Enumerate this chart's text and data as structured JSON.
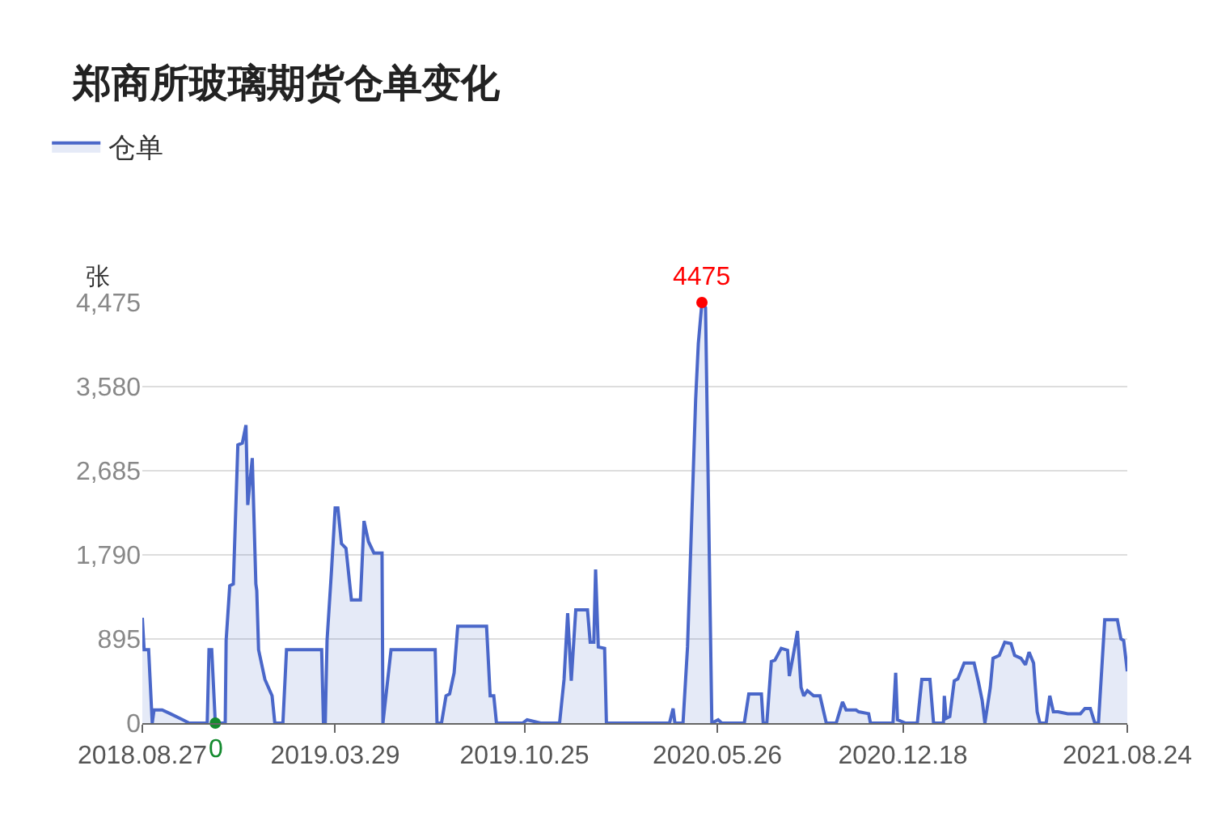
{
  "chart_data": {
    "type": "area",
    "title": "郑商所玻璃期货仓单变化",
    "ylabel": "张",
    "legend": "top left",
    "grid": "y",
    "x": [
      "2018-08-27",
      "2018-08-29",
      "2018-09-03",
      "2018-09-07",
      "2018-09-09",
      "2018-09-18",
      "2018-09-27",
      "2018-10-11",
      "2018-10-18",
      "2018-11-07",
      "2018-11-09",
      "2018-11-12",
      "2018-11-16",
      "2018-11-27",
      "2018-11-28",
      "2018-12-02",
      "2018-12-06",
      "2018-12-11",
      "2018-12-16",
      "2018-12-20",
      "2018-12-22",
      "2018-12-27",
      "2018-12-31",
      "2019-01-01",
      "2019-01-03",
      "2019-01-10",
      "2019-01-18",
      "2019-01-21",
      "2019-01-30",
      "2019-02-03",
      "2019-03-14",
      "2019-03-16",
      "2019-03-18",
      "2019-03-20",
      "2019-03-25",
      "2019-03-29",
      "2019-04-01",
      "2019-04-05",
      "2019-04-10",
      "2019-04-16",
      "2019-04-26",
      "2019-04-30",
      "2019-05-05",
      "2019-05-11",
      "2019-05-20",
      "2019-05-21",
      "2019-05-30",
      "2019-07-18",
      "2019-07-20",
      "2019-07-25",
      "2019-07-30",
      "2019-08-03",
      "2019-08-08",
      "2019-08-12",
      "2019-09-13",
      "2019-09-17",
      "2019-09-21",
      "2019-09-24",
      "2019-10-23",
      "2019-10-28",
      "2019-11-12",
      "2019-12-03",
      "2019-12-08",
      "2019-12-12",
      "2019-12-16",
      "2019-12-21",
      "2020-01-03",
      "2020-01-06",
      "2020-01-10",
      "2020-01-12",
      "2020-01-15",
      "2020-01-22",
      "2020-01-24",
      "2020-04-03",
      "2020-04-07",
      "2020-04-09",
      "2020-04-18",
      "2020-04-23",
      "2020-05-02",
      "2020-05-05",
      "2020-05-09",
      "2020-05-13",
      "2020-05-16",
      "2020-05-20",
      "2020-05-27",
      "2020-05-31",
      "2020-06-25",
      "2020-06-30",
      "2020-07-14",
      "2020-07-16",
      "2020-07-20",
      "2020-07-25",
      "2020-07-29",
      "2020-08-05",
      "2020-08-12",
      "2020-08-14",
      "2020-08-18",
      "2020-08-23",
      "2020-08-27",
      "2020-08-30",
      "2020-09-03",
      "2020-09-10",
      "2020-09-17",
      "2020-09-24",
      "2020-10-05",
      "2020-10-12",
      "2020-10-16",
      "2020-10-27",
      "2020-10-30",
      "2020-11-10",
      "2020-11-12",
      "2020-12-07",
      "2020-12-10",
      "2020-12-12",
      "2020-12-21",
      "2021-01-03",
      "2021-01-08",
      "2021-01-17",
      "2021-01-21",
      "2021-02-01",
      "2021-02-02",
      "2021-02-04",
      "2021-02-08",
      "2021-02-13",
      "2021-02-17",
      "2021-02-24",
      "2021-03-07",
      "2021-03-12",
      "2021-03-16",
      "2021-03-19",
      "2021-03-25",
      "2021-03-28",
      "2021-04-04",
      "2021-04-10",
      "2021-04-17",
      "2021-04-21",
      "2021-04-28",
      "2021-05-03",
      "2021-05-07",
      "2021-05-12",
      "2021-05-16",
      "2021-05-19",
      "2021-05-26",
      "2021-05-30",
      "2021-06-03",
      "2021-06-08",
      "2021-06-19",
      "2021-07-03",
      "2021-07-08",
      "2021-07-14",
      "2021-07-19",
      "2021-07-23",
      "2021-07-30",
      "2021-08-13",
      "2021-08-17",
      "2021-08-20",
      "2021-08-24"
    ],
    "series": [
      {
        "name": "仓单",
        "color": "#4a67c9",
        "values": [
          1120,
          780,
          780,
          0,
          140,
          140,
          100,
          35,
          0,
          0,
          780,
          780,
          0,
          0,
          880,
          1460,
          1480,
          2960,
          2980,
          3170,
          2320,
          2820,
          1480,
          1410,
          780,
          465,
          290,
          0,
          0,
          780,
          780,
          0,
          0,
          880,
          1635,
          2290,
          2290,
          1910,
          1860,
          1310,
          1310,
          2150,
          1930,
          1810,
          1810,
          0,
          780,
          780,
          0,
          0,
          290,
          310,
          535,
          1030,
          1030,
          290,
          290,
          0,
          0,
          35,
          0,
          0,
          465,
          1170,
          450,
          1205,
          1205,
          860,
          860,
          1635,
          810,
          795,
          0,
          0,
          155,
          0,
          0,
          810,
          3440,
          4040,
          4475,
          4420,
          2530,
          0,
          35,
          0,
          0,
          310,
          310,
          0,
          0,
          655,
          670,
          795,
          775,
          500,
          705,
          980,
          380,
          290,
          345,
          290,
          290,
          0,
          0,
          225,
          140,
          140,
          120,
          100,
          0,
          0,
          535,
          35,
          0,
          0,
          465,
          465,
          0,
          0,
          290,
          50,
          70,
          450,
          470,
          640,
          640,
          430,
          240,
          0,
          380,
          690,
          720,
          860,
          845,
          720,
          690,
          620,
          755,
          640,
          120,
          0,
          0,
          290,
          120,
          120,
          100,
          100,
          155,
          155,
          0,
          0,
          1100,
          1100,
          895,
          880,
          550
        ]
      }
    ],
    "xlim": [
      "2018-08-27",
      "2021-08-24"
    ],
    "xticks": [
      {
        "value": "2018-08-27",
        "label": "2018.08.27"
      },
      {
        "value": "2019-03-29",
        "label": "2019.03.29"
      },
      {
        "value": "2019-10-25",
        "label": "2019.10.25"
      },
      {
        "value": "2020-05-26",
        "label": "2020.05.26"
      },
      {
        "value": "2020-12-18",
        "label": "2020.12.18"
      },
      {
        "value": "2021-08-24",
        "label": "2021.08.24"
      }
    ],
    "ylim": [
      0,
      4475
    ],
    "yticks": [
      0,
      {
        "value": 895,
        "label": "895"
      },
      {
        "value": 1790,
        "label": "1,790"
      },
      {
        "value": 2685,
        "label": "2,685"
      },
      {
        "value": 3580,
        "label": "3,580"
      },
      {
        "value": 4475,
        "label": "4,475"
      }
    ],
    "annotations": [
      {
        "text": "4475",
        "x": "2020-05-09",
        "y": 4475
      },
      {
        "text": "0",
        "x": "2018-11-16",
        "y": 0
      }
    ]
  }
}
